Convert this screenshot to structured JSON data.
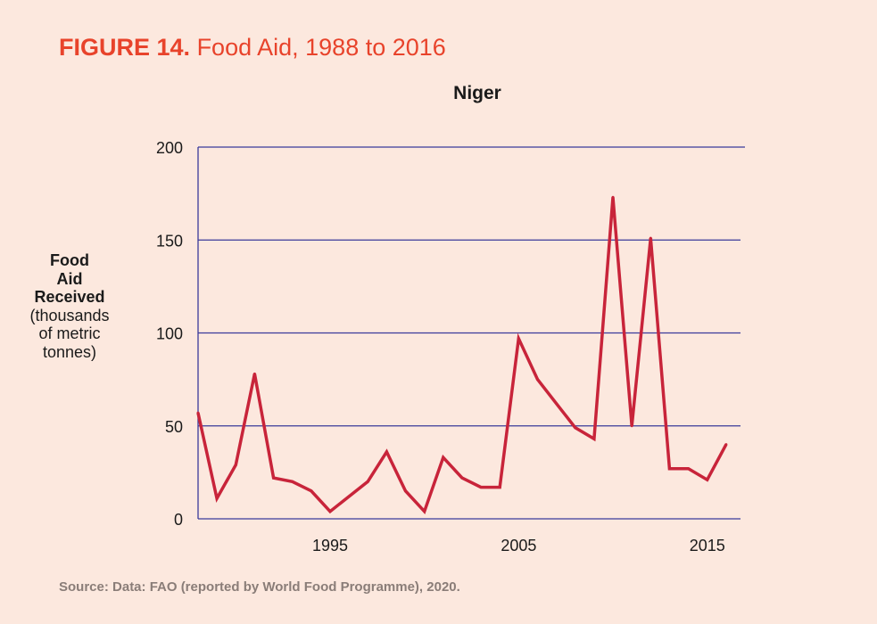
{
  "figure": {
    "number": "FIGURE 14.",
    "title": "Food Aid, 1988 to 2016"
  },
  "source": "Source: Data: FAO (reported by World Food Programme), 2020.",
  "chart_data": {
    "type": "line",
    "title": "Niger",
    "ylabel_lines": [
      "Food",
      "Aid",
      "Received"
    ],
    "ylabel_note_lines": [
      "(thousands",
      "of metric",
      "tonnes)"
    ],
    "xlim": [
      1988,
      2017
    ],
    "ylim": [
      0,
      200
    ],
    "yticks": [
      0,
      50,
      100,
      150,
      200
    ],
    "xticks": [
      1995,
      2005,
      2015
    ],
    "grid": "horizontal",
    "line_color": "#c8243a",
    "grid_color": "#3a3a9a",
    "series": [
      {
        "x": [
          1988,
          1989,
          1990,
          1991,
          1992,
          1993,
          1994,
          1995,
          1996,
          1997,
          1998,
          1999,
          2000,
          2001,
          2002,
          2003,
          2004,
          2005,
          2006,
          2007,
          2008,
          2009,
          2010,
          2011,
          2012,
          2013,
          2014,
          2015,
          2016
        ],
        "y": [
          57,
          11,
          29,
          78,
          22,
          20,
          15,
          4,
          12,
          20,
          36,
          15,
          4,
          33,
          22,
          17,
          17,
          97,
          75,
          62,
          49,
          43,
          173,
          50,
          151,
          27,
          27,
          21,
          40
        ]
      }
    ]
  }
}
